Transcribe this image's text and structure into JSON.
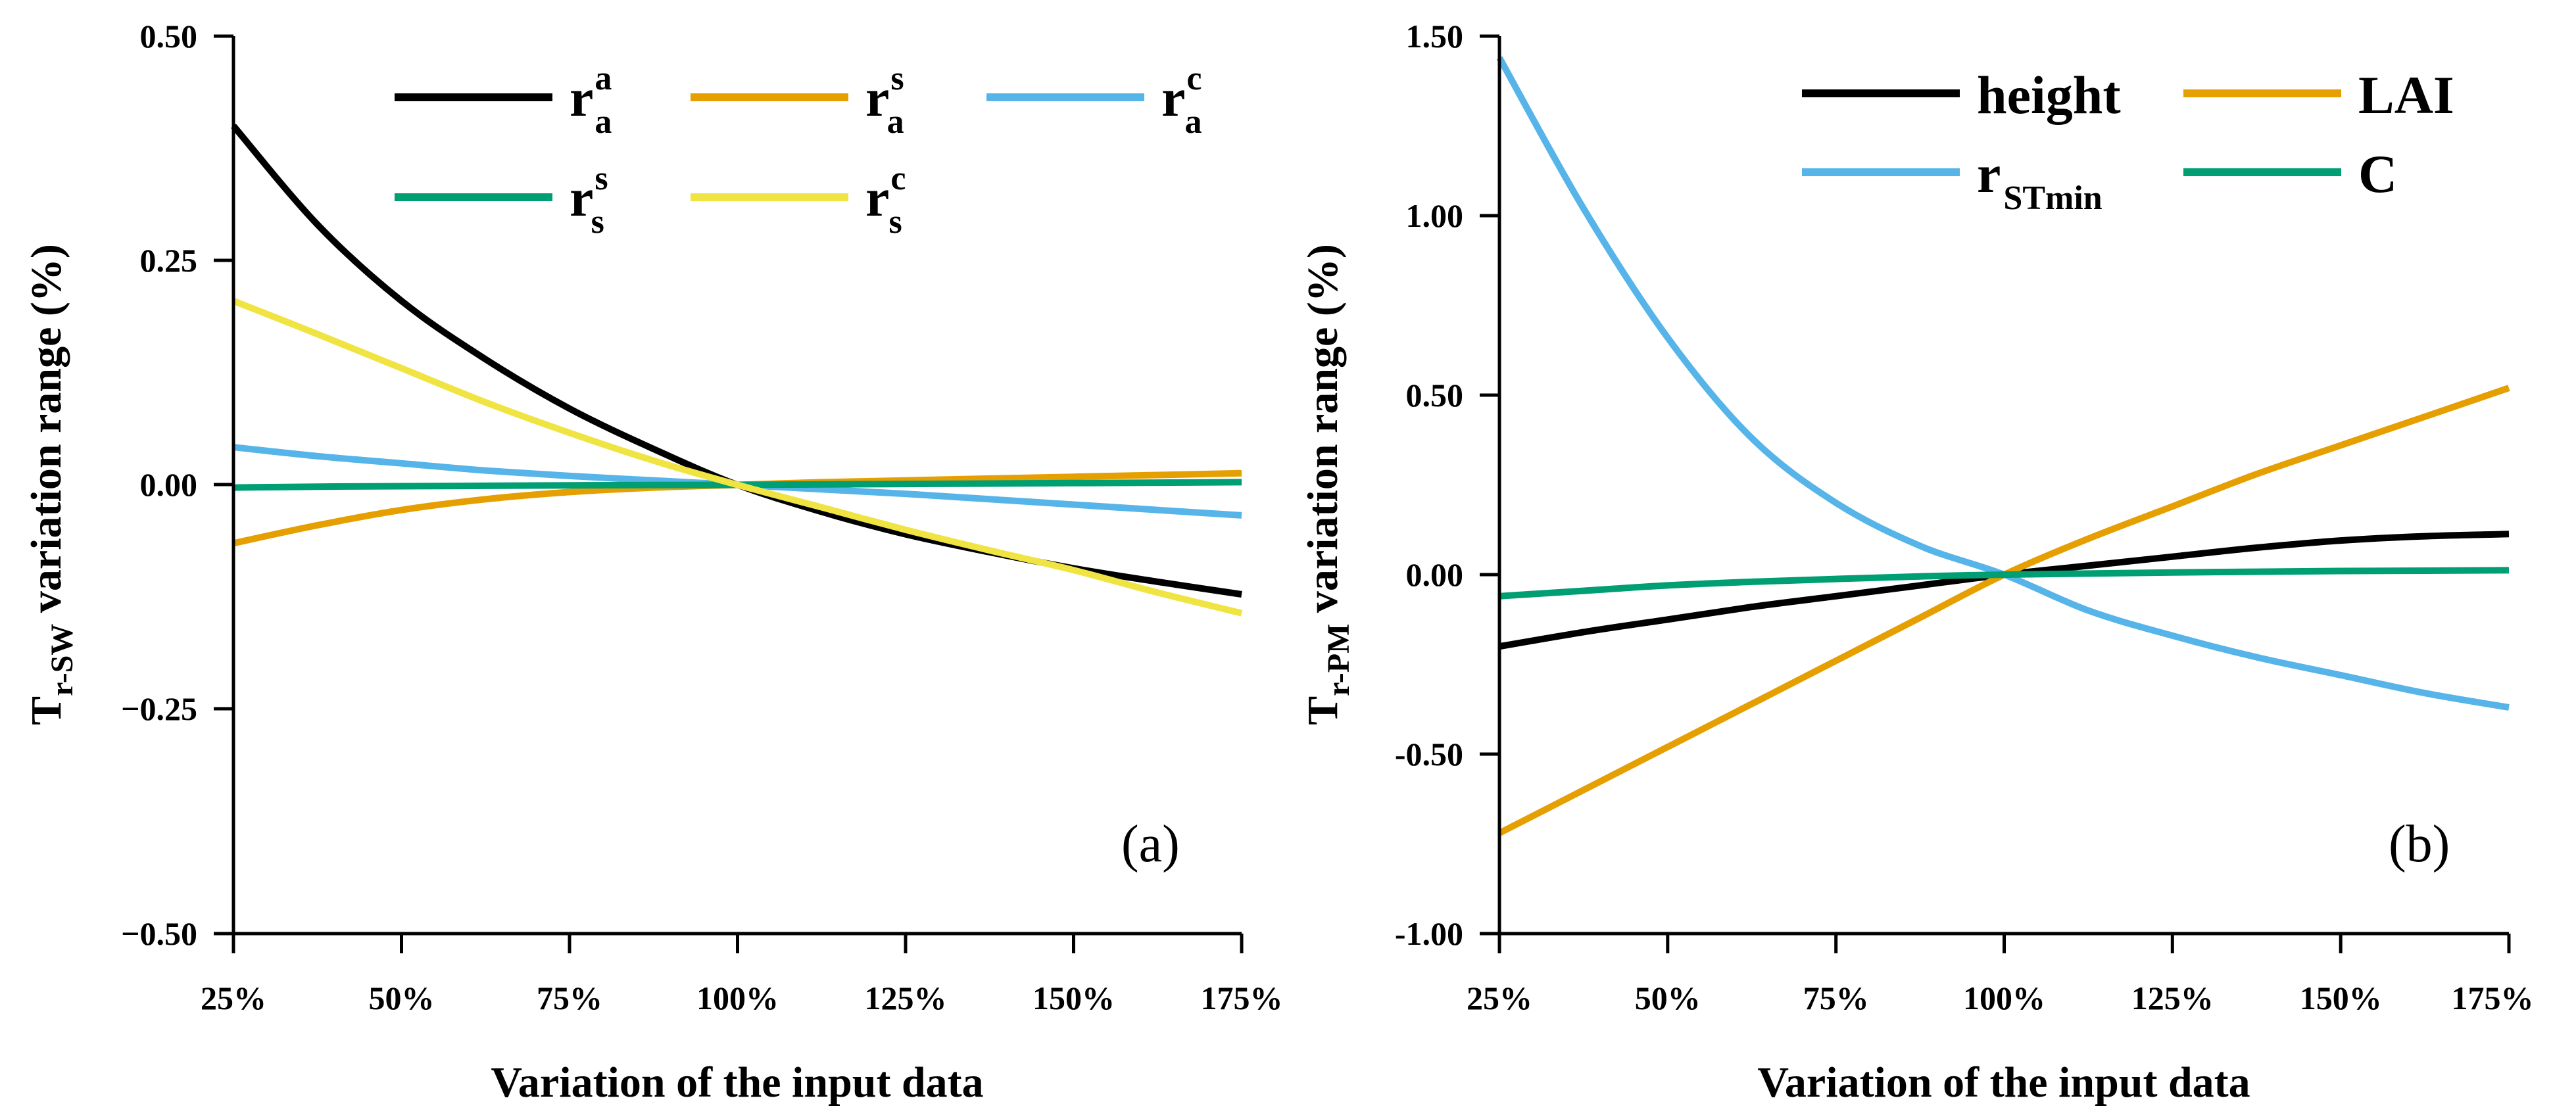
{
  "chart_data": [
    {
      "type": "line",
      "panel_label": "(a)",
      "xlabel": "Variation of the input data",
      "ylabel": {
        "main": "T",
        "sub": "r-SW",
        "rest": " variation range (%)"
      },
      "x_tick_labels": [
        "25%",
        "50%",
        "75%",
        "100%",
        "125%",
        "150%",
        "175%"
      ],
      "x": [
        25,
        37.5,
        50,
        62.5,
        75,
        87.5,
        100,
        112.5,
        125,
        137.5,
        150,
        162.5,
        175
      ],
      "xlim": [
        25,
        175
      ],
      "y_tick_labels": [
        "0.50",
        "0.25",
        "0.00",
        "−0.25",
        "−0.50"
      ],
      "y_ticks": [
        0.5,
        0.25,
        0.0,
        -0.25,
        -0.5
      ],
      "ylim": [
        -0.5,
        0.5
      ],
      "legend_position": "top",
      "series": [
        {
          "name": "r_a^a",
          "base": "r",
          "sub": "a",
          "sup": "a",
          "color": "#000000",
          "values": [
            0.4,
            0.29,
            0.205,
            0.14,
            0.085,
            0.04,
            0.0,
            -0.03,
            -0.055,
            -0.075,
            -0.093,
            -0.108,
            -0.122
          ]
        },
        {
          "name": "r_a^s",
          "base": "r",
          "sub": "a",
          "sup": "s",
          "color": "#E69F00",
          "values": [
            -0.065,
            -0.045,
            -0.028,
            -0.016,
            -0.008,
            -0.003,
            0.0,
            0.003,
            0.005,
            0.007,
            0.009,
            0.011,
            0.013
          ]
        },
        {
          "name": "r_a^c",
          "base": "r",
          "sub": "a",
          "sup": "c",
          "color": "#56B4E9",
          "values": [
            0.042,
            0.032,
            0.024,
            0.016,
            0.01,
            0.005,
            0.0,
            -0.005,
            -0.01,
            -0.016,
            -0.022,
            -0.028,
            -0.034
          ]
        },
        {
          "name": "r_s^s",
          "base": "r",
          "sub": "s",
          "sup": "s",
          "color": "#009E73",
          "values": [
            -0.003,
            -0.002,
            -0.0015,
            -0.001,
            -0.0005,
            -0.0002,
            0.0,
            0.0005,
            0.001,
            0.0015,
            0.002,
            0.0025,
            0.003
          ]
        },
        {
          "name": "r_s^c",
          "base": "r",
          "sub": "s",
          "sup": "c",
          "color": "#F0E442",
          "values": [
            0.205,
            0.168,
            0.13,
            0.092,
            0.058,
            0.027,
            0.0,
            -0.025,
            -0.05,
            -0.073,
            -0.095,
            -0.12,
            -0.143
          ]
        }
      ]
    },
    {
      "type": "line",
      "panel_label": "(b)",
      "xlabel": "Variation of the input data",
      "ylabel": {
        "main": "T",
        "sub": "r-PM",
        "rest": " variation range (%)"
      },
      "x_tick_labels": [
        "25%",
        "50%",
        "75%",
        "100%",
        "125%",
        "150%",
        "175%"
      ],
      "x": [
        25,
        37.5,
        50,
        62.5,
        75,
        87.5,
        100,
        112.5,
        125,
        137.5,
        150,
        162.5,
        175
      ],
      "xlim": [
        25,
        175
      ],
      "y_tick_labels": [
        "1.50",
        "1.00",
        "0.50",
        "0.00",
        "-0.50",
        "-1.00"
      ],
      "y_ticks": [
        1.5,
        1.0,
        0.5,
        0.0,
        -0.5,
        -1.0
      ],
      "ylim": [
        -1.0,
        1.5
      ],
      "legend_position": "top-right",
      "series": [
        {
          "name": "height",
          "label": "height",
          "color": "#000000",
          "values": [
            -0.2,
            -0.16,
            -0.125,
            -0.09,
            -0.06,
            -0.03,
            0.0,
            0.025,
            0.05,
            0.075,
            0.095,
            0.107,
            0.113
          ]
        },
        {
          "name": "LAI",
          "label": "LAI",
          "color": "#E69F00",
          "values": [
            -0.72,
            -0.6,
            -0.48,
            -0.36,
            -0.24,
            -0.12,
            0.0,
            0.1,
            0.19,
            0.28,
            0.36,
            0.44,
            0.52
          ]
        },
        {
          "name": "r_STmin",
          "base": "r",
          "sub": "STmin",
          "color": "#56B4E9",
          "values": [
            1.44,
            1.02,
            0.66,
            0.38,
            0.2,
            0.08,
            0.0,
            -0.1,
            -0.17,
            -0.23,
            -0.28,
            -0.33,
            -0.37
          ]
        },
        {
          "name": "C",
          "label": "C",
          "color": "#009E73",
          "values": [
            -0.06,
            -0.045,
            -0.03,
            -0.02,
            -0.012,
            -0.005,
            0.0,
            0.003,
            0.006,
            0.008,
            0.01,
            0.011,
            0.012
          ]
        }
      ]
    }
  ]
}
